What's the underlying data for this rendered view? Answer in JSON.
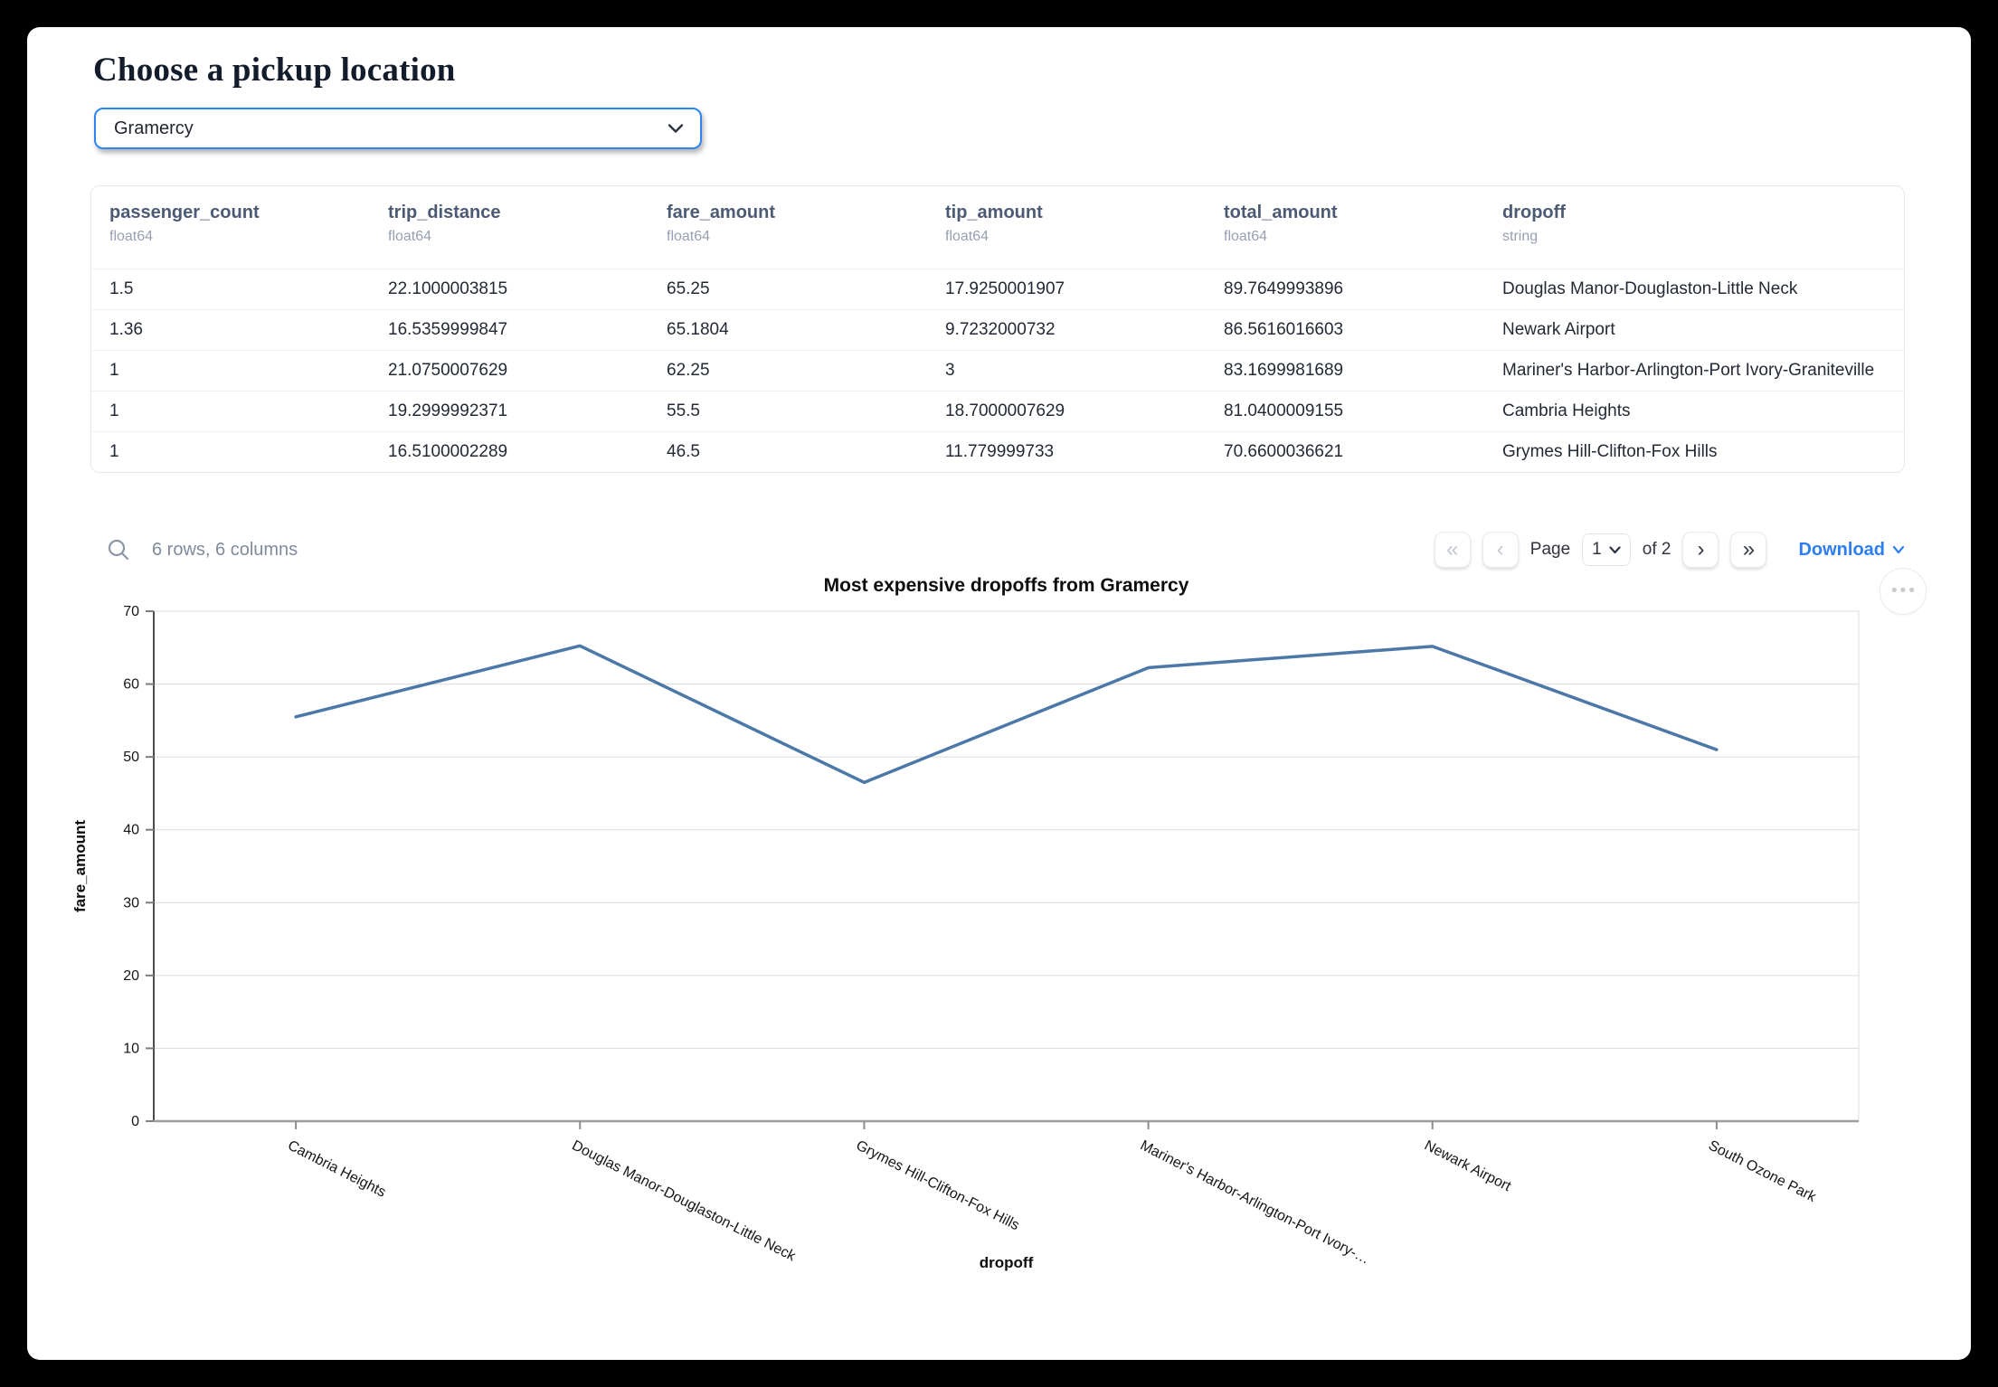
{
  "page": {
    "title": "Choose a pickup location"
  },
  "pickup_select": {
    "value": "Gramercy"
  },
  "table": {
    "columns": [
      {
        "name": "passenger_count",
        "type": "float64"
      },
      {
        "name": "trip_distance",
        "type": "float64"
      },
      {
        "name": "fare_amount",
        "type": "float64"
      },
      {
        "name": "tip_amount",
        "type": "float64"
      },
      {
        "name": "total_amount",
        "type": "float64"
      },
      {
        "name": "dropoff",
        "type": "string"
      }
    ],
    "rows": [
      [
        "1.5",
        "22.1000003815",
        "65.25",
        "17.9250001907",
        "89.7649993896",
        "Douglas Manor-Douglaston-Little Neck"
      ],
      [
        "1.36",
        "16.5359999847",
        "65.1804",
        "9.7232000732",
        "86.5616016603",
        "Newark Airport"
      ],
      [
        "1",
        "21.0750007629",
        "62.25",
        "3",
        "83.1699981689",
        "Mariner's Harbor-Arlington-Port Ivory-Graniteville"
      ],
      [
        "1",
        "19.2999992371",
        "55.5",
        "18.7000007629",
        "81.0400009155",
        "Cambria Heights"
      ],
      [
        "1",
        "16.5100002289",
        "46.5",
        "11.779999733",
        "70.6600036621",
        "Grymes Hill-Clifton-Fox Hills"
      ]
    ]
  },
  "table_footer": {
    "summary": "6 rows, 6 columns",
    "page_label": "Page",
    "page_value": "1",
    "of_label": "of 2",
    "download_label": "Download"
  },
  "icons": {
    "first_page": "«",
    "prev_page": "‹",
    "next_page": "›",
    "last_page": "»",
    "more_options": "•••"
  },
  "chart_data": {
    "type": "line",
    "title": "Most expensive dropoffs from Gramercy",
    "xlabel": "dropoff",
    "ylabel": "fare_amount",
    "categories": [
      "Cambria Heights",
      "Douglas Manor-Douglaston-Little Neck",
      "Grymes Hill-Clifton-Fox Hills",
      "Mariner's Harbor-Arlington-Port Ivory-Graniteville",
      "Newark Airport",
      "South Ozone Park"
    ],
    "x_tick_labels": [
      "Cambria Heights",
      "Douglas Manor-Douglaston-Little Neck",
      "Grymes Hill-Clifton-Fox Hills",
      "Mariner's Harbor-Arlington-Port Ivory-…",
      "Newark Airport",
      "South Ozone Park"
    ],
    "values": [
      55.5,
      65.25,
      46.5,
      62.25,
      65.1804,
      51
    ],
    "ylim": [
      0,
      70
    ],
    "yticks": [
      0,
      10,
      20,
      30,
      40,
      50,
      60,
      70
    ],
    "grid": true,
    "legend": "none",
    "line_color": "#4c78a8"
  },
  "colors": {
    "accent_blue": "#2e86f2",
    "download_blue": "#2c7ef2",
    "line_blue": "#4c78a8",
    "grid_gray": "#dcdcdc"
  }
}
